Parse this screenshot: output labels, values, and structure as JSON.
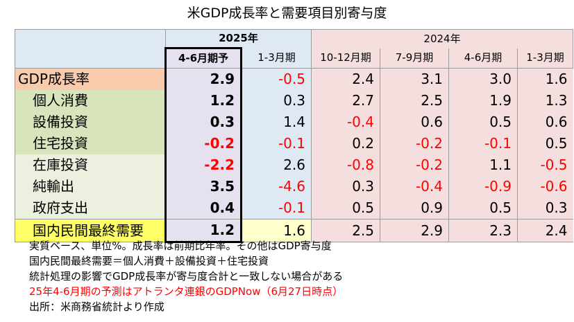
{
  "title": "米GDP成長率と需要項目別寄与度",
  "header": {
    "year_2025": "2025年",
    "year_2024": "2024年",
    "quarters": [
      "4-6月期予",
      "1-3月期",
      "10-12月期",
      "7-9月期",
      "4-6月期",
      "1-3月期"
    ]
  },
  "rows": [
    {
      "label": "GDP成長率",
      "values": [
        "2.9",
        "-0.5",
        "2.4",
        "3.1",
        "3.0",
        "1.6"
      ]
    },
    {
      "label": "個人消費",
      "values": [
        "1.2",
        "0.3",
        "2.7",
        "2.5",
        "1.9",
        "1.3"
      ]
    },
    {
      "label": "設備投資",
      "values": [
        "0.3",
        "1.4",
        "-0.4",
        "0.6",
        "0.5",
        "0.6"
      ]
    },
    {
      "label": "住宅投資",
      "values": [
        "-0.2",
        "-0.1",
        "0.2",
        "-0.2",
        "-0.1",
        "0.5"
      ]
    },
    {
      "label": "在庫投資",
      "values": [
        "-2.2",
        "2.6",
        "-0.8",
        "-0.2",
        "1.1",
        "-0.5"
      ]
    },
    {
      "label": "純輸出",
      "values": [
        "3.5",
        "-4.6",
        "0.3",
        "-0.4",
        "-0.9",
        "-0.6"
      ]
    },
    {
      "label": "政府支出",
      "values": [
        "0.4",
        "-0.1",
        "0.5",
        "0.9",
        "0.5",
        "0.3"
      ]
    },
    {
      "label": "国内民間最終需要",
      "values": [
        "1.2",
        "1.6",
        "2.5",
        "2.9",
        "2.3",
        "2.4"
      ]
    }
  ],
  "notes": [
    "実質ベース、単位%。成長率は前期比年率。その他はGDP寄与度",
    "国内民間最終需要＝個人消費＋設備投資＋住宅投資",
    "統計処理の影響でGDP成長率が寄与度合計と一致しない場合がある",
    "25年4-6月期の予測はアトランタ連銀のGDPNow（6月27日時点）",
    "出所：米商務省統計より作成"
  ],
  "colors": {
    "negative": "#ff0000",
    "gdp_row": "#f8cbad",
    "component_green": "#d8e4bc",
    "component_light_green": "#ebf1de",
    "domestic_demand": "#ffff66",
    "column_2025": "#dfe9f3",
    "column_2024": "#f4dede",
    "forecast_column": "#e6e1ef"
  },
  "chart_data": {
    "type": "table",
    "title": "米GDP成長率と需要項目別寄与度",
    "column_groups": [
      {
        "name": "2025年",
        "columns": [
          "4-6月期予",
          "1-3月期"
        ]
      },
      {
        "name": "2024年",
        "columns": [
          "10-12月期",
          "7-9月期",
          "4-6月期",
          "1-3月期"
        ]
      }
    ],
    "categories": [
      "4-6月期予",
      "1-3月期",
      "10-12月期",
      "7-9月期",
      "4-6月期",
      "1-3月期"
    ],
    "series": [
      {
        "name": "GDP成長率",
        "values": [
          2.9,
          -0.5,
          2.4,
          3.1,
          3.0,
          1.6
        ]
      },
      {
        "name": "個人消費",
        "values": [
          1.2,
          0.3,
          2.7,
          2.5,
          1.9,
          1.3
        ]
      },
      {
        "name": "設備投資",
        "values": [
          0.3,
          1.4,
          -0.4,
          0.6,
          0.5,
          0.6
        ]
      },
      {
        "name": "住宅投資",
        "values": [
          -0.2,
          -0.1,
          0.2,
          -0.2,
          -0.1,
          0.5
        ]
      },
      {
        "name": "在庫投資",
        "values": [
          -2.2,
          2.6,
          -0.8,
          -0.2,
          1.1,
          -0.5
        ]
      },
      {
        "name": "純輸出",
        "values": [
          3.5,
          -4.6,
          0.3,
          -0.4,
          -0.9,
          -0.6
        ]
      },
      {
        "name": "政府支出",
        "values": [
          0.4,
          -0.1,
          0.5,
          0.9,
          0.5,
          0.3
        ]
      },
      {
        "name": "国内民間最終需要",
        "values": [
          1.2,
          1.6,
          2.5,
          2.9,
          2.3,
          2.4
        ]
      }
    ]
  }
}
